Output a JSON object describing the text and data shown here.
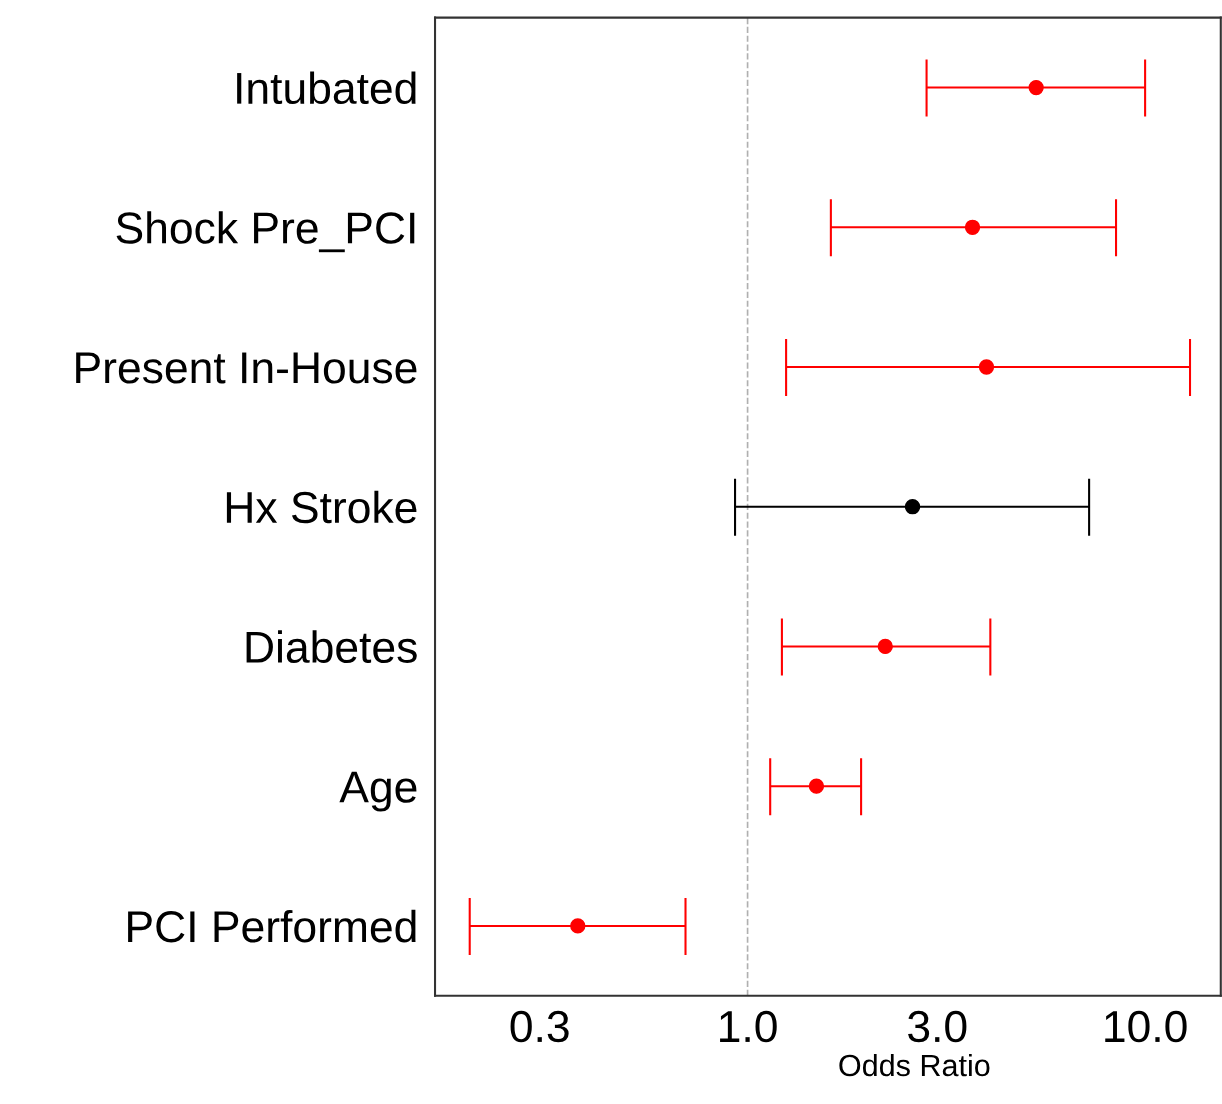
{
  "chart_data": {
    "type": "scatter",
    "orientation": "horizontal",
    "xlabel": "Odds Ratio",
    "categories": [
      "Intubated",
      "Shock Pre_PCI",
      "Present In-House",
      "Hx Stroke",
      "Diabetes",
      "Age",
      "PCI Performed"
    ],
    "values": [
      5.32,
      3.68,
      3.99,
      2.6,
      2.22,
      1.49,
      0.374
    ],
    "errors": [
      [
        2.82,
        10.0
      ],
      [
        1.62,
        8.45
      ],
      [
        1.25,
        12.97
      ],
      [
        0.93,
        7.23
      ],
      [
        1.22,
        4.08
      ],
      [
        1.14,
        1.93
      ],
      [
        0.2,
        0.698
      ]
    ],
    "colors": [
      "#ff0000",
      "#ff0000",
      "#ff0000",
      "#000000",
      "#ff0000",
      "#ff0000",
      "#ff0000"
    ],
    "log": "x",
    "xlim": [
      0.1636,
      15.5
    ],
    "xticks": [
      {
        "value": 0.3,
        "label": "0.3"
      },
      {
        "value": 1.0,
        "label": "1.0"
      },
      {
        "value": 3.0,
        "label": "3.0"
      },
      {
        "value": 10.0,
        "label": "10.0"
      }
    ],
    "ref_lines": [
      {
        "axis": "x",
        "value": 1.0,
        "color": "#b0b0b0",
        "line_style": "dashed"
      }
    ],
    "marker": "circle",
    "grid": false,
    "legend": false
  }
}
